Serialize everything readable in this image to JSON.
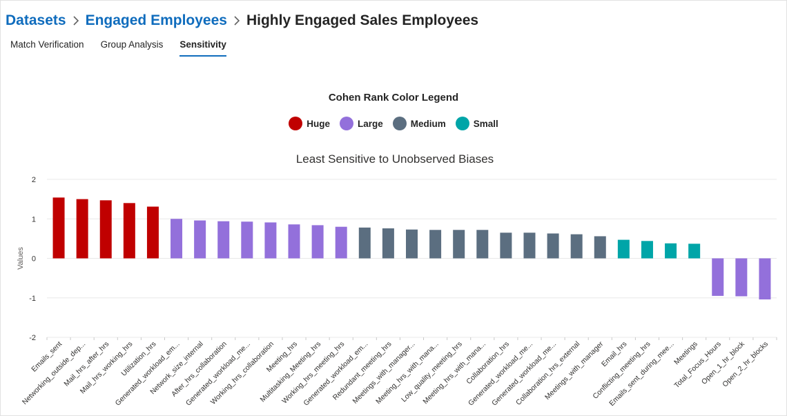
{
  "breadcrumb": {
    "items": [
      "Datasets",
      "Engaged Employees"
    ],
    "current": "Highly Engaged Sales Employees"
  },
  "tabs": [
    {
      "label": "Match Verification",
      "active": false
    },
    {
      "label": "Group Analysis",
      "active": false
    },
    {
      "label": "Sensitivity",
      "active": true
    }
  ],
  "legend": {
    "title": "Cohen Rank Color Legend",
    "items": [
      {
        "label": "Huge",
        "color": "#c00000"
      },
      {
        "label": "Large",
        "color": "#9370db"
      },
      {
        "label": "Medium",
        "color": "#5b6e80"
      },
      {
        "label": "Small",
        "color": "#00a5a8"
      }
    ]
  },
  "chart_data": {
    "type": "bar",
    "title": "Least Sensitive to Unobserved Biases",
    "ylabel": "Values",
    "xlabel": "",
    "ylim": [
      -2,
      2
    ],
    "yticks": [
      2,
      1,
      0,
      -1,
      -2
    ],
    "grid": true,
    "categories": [
      "Emails_sent",
      "Networking_outside_dep...",
      "Mail_hrs_after_hrs",
      "Mail_hrs_working_hrs",
      "Utilization_hrs",
      "Generated_workload_em...",
      "Network_size_internal",
      "After_hrs_collaboration",
      "Generated_workload_me...",
      "Working_hrs_collaboration",
      "Meeting_hrs",
      "Multitasking_Meeting_hrs",
      "Working_hrs_meeting_hrs",
      "Generated_workload_em...",
      "Redundant_meeting_hrs",
      "Meetings_with_manager...",
      "Meeting_hrs_with_mana...",
      "Low_quality_meeting_hrs",
      "Meeting_hrs_with_mana...",
      "Collaboration_hrs",
      "Generated_workload_me...",
      "Generated_workload_me...",
      "Collaboration_hrs_external",
      "Meetings_with_manager",
      "Email_hrs",
      "Conflicting_meeting_hrs",
      "Emails_sent_during_mee...",
      "Meetings",
      "Total_Focus_Hours",
      "Open_1_hr_block",
      "Open_2_hr_blocks"
    ],
    "values": [
      1.54,
      1.5,
      1.47,
      1.4,
      1.31,
      1.0,
      0.96,
      0.94,
      0.93,
      0.91,
      0.86,
      0.84,
      0.8,
      0.78,
      0.76,
      0.73,
      0.72,
      0.72,
      0.72,
      0.65,
      0.65,
      0.63,
      0.61,
      0.56,
      0.47,
      0.44,
      0.38,
      0.37,
      -0.95,
      -0.96,
      -1.04
    ],
    "ranks": [
      "Huge",
      "Huge",
      "Huge",
      "Huge",
      "Huge",
      "Large",
      "Large",
      "Large",
      "Large",
      "Large",
      "Large",
      "Large",
      "Large",
      "Medium",
      "Medium",
      "Medium",
      "Medium",
      "Medium",
      "Medium",
      "Medium",
      "Medium",
      "Medium",
      "Medium",
      "Medium",
      "Small",
      "Small",
      "Small",
      "Small",
      "Large",
      "Large",
      "Large"
    ]
  }
}
